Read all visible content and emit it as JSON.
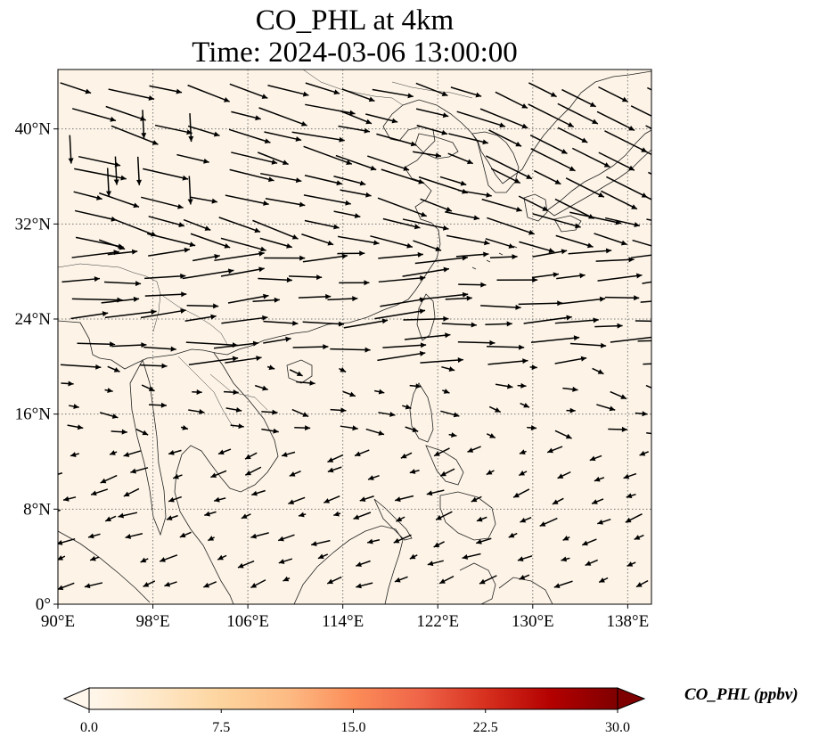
{
  "title": {
    "line1": "CO_PHL at 4km",
    "line2": "Time: 2024-03-06 13:00:00"
  },
  "map": {
    "extent": {
      "lon_min": 90,
      "lon_max": 140,
      "lat_min": 0,
      "lat_max": 45
    },
    "lon_ticks": [
      {
        "value": 90,
        "label": "90°E"
      },
      {
        "value": 98,
        "label": "98°E"
      },
      {
        "value": 106,
        "label": "106°E"
      },
      {
        "value": 114,
        "label": "114°E"
      },
      {
        "value": 122,
        "label": "122°E"
      },
      {
        "value": 130,
        "label": "130°E"
      },
      {
        "value": 138,
        "label": "138°E"
      }
    ],
    "lat_ticks": [
      {
        "value": 0,
        "label": "0°"
      },
      {
        "value": 8,
        "label": "8°N"
      },
      {
        "value": 16,
        "label": "16°N"
      },
      {
        "value": 24,
        "label": "24°N"
      },
      {
        "value": 32,
        "label": "32°N"
      },
      {
        "value": 40,
        "label": "40°N"
      }
    ],
    "gridlines": true,
    "background_color": "#fdf4e7",
    "wind_arrows": "quiver field, predominantly westerly north of ~20°N and north-easterly south of ~16°N"
  },
  "colorbar": {
    "label": "CO_PHL (ppbv)",
    "min": 0.0,
    "max": 30.0,
    "extend": "both",
    "cmap": "OrRd",
    "ticks": [
      "0.0",
      "7.5",
      "15.0",
      "22.5",
      "30.0"
    ],
    "tick_values": [
      0,
      7.5,
      15,
      22.5,
      30
    ],
    "colors": [
      "#fff7ec",
      "#fee8c8",
      "#fdd49e",
      "#fdbb84",
      "#fc8d59",
      "#ef6548",
      "#d7301f",
      "#b30000",
      "#7f0000"
    ]
  }
}
